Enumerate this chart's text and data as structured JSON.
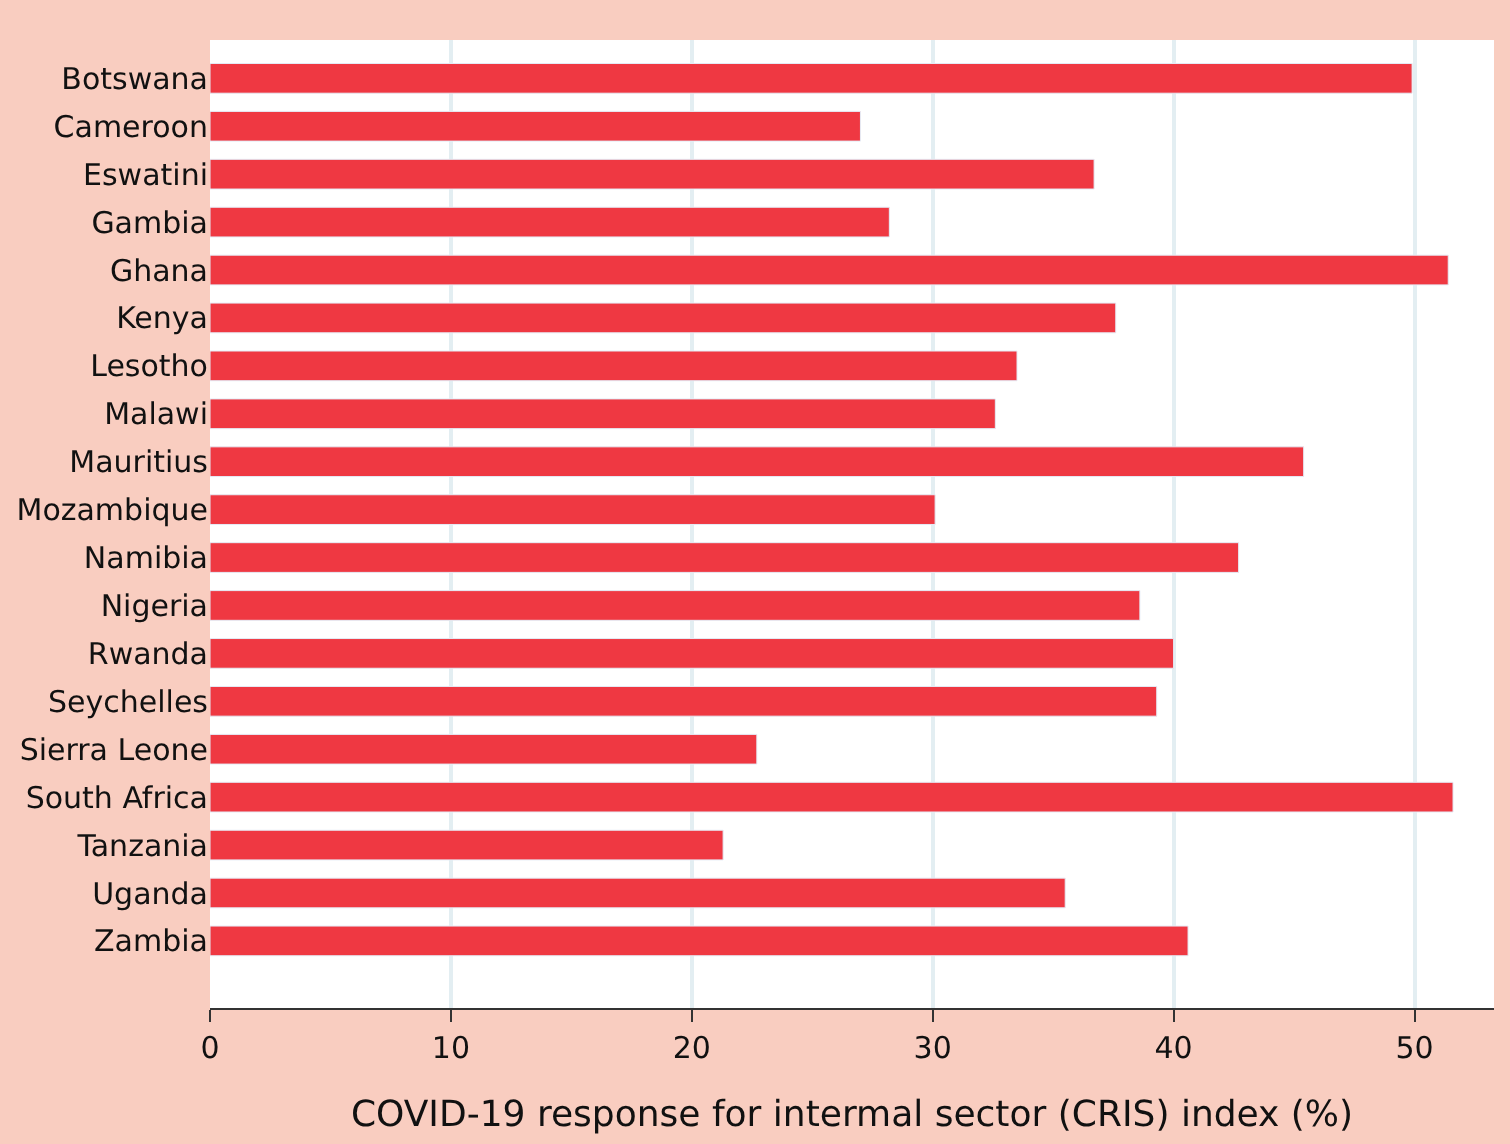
{
  "chart_data": {
    "type": "bar",
    "orientation": "horizontal",
    "xlabel": "COVID-19 response for intermal sector (CRIS) index (%)",
    "categories": [
      "Botswana",
      "Cameroon",
      "Eswatini",
      "Gambia",
      "Ghana",
      "Kenya",
      "Lesotho",
      "Malawi",
      "Mauritius",
      "Mozambique",
      "Namibia",
      "Nigeria",
      "Rwanda",
      "Seychelles",
      "Sierra Leone",
      "South Africa",
      "Tanzania",
      "Uganda",
      "Zambia"
    ],
    "values": [
      49.9,
      27.0,
      36.7,
      28.2,
      51.4,
      37.6,
      33.5,
      32.6,
      45.4,
      30.1,
      42.7,
      38.6,
      40.0,
      39.3,
      22.7,
      51.6,
      21.3,
      35.5,
      40.6
    ],
    "color": "#ef3842",
    "xlim": [
      0,
      53.3
    ],
    "xticks": [
      0,
      10,
      20,
      30,
      40,
      50
    ],
    "grid": "x"
  }
}
